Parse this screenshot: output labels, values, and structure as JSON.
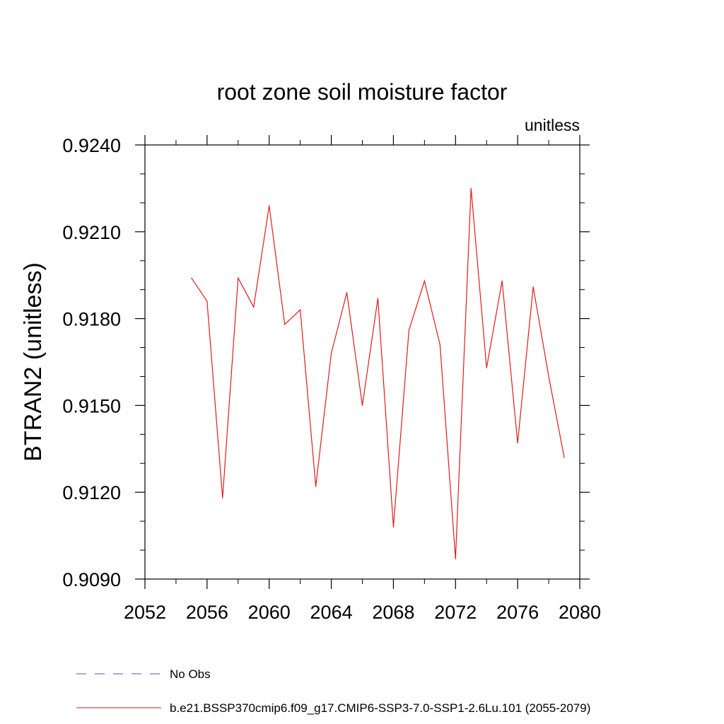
{
  "chart_data": {
    "type": "line",
    "title": "root zone soil moisture factor",
    "units_label": "unitless",
    "xlabel": "",
    "ylabel": "BTRAN2  (unitless)",
    "xlim": [
      2052,
      2080
    ],
    "ylim": [
      0.909,
      0.924
    ],
    "x_ticks": [
      2052,
      2056,
      2060,
      2064,
      2068,
      2072,
      2076,
      2080
    ],
    "x_tick_labels": [
      "2052",
      "2056",
      "2060",
      "2064",
      "2068",
      "2072",
      "2076",
      "2080"
    ],
    "x_minor_ticks": [
      2054,
      2058,
      2062,
      2066,
      2070,
      2074,
      2078
    ],
    "y_ticks": [
      0.909,
      0.912,
      0.915,
      0.918,
      0.921,
      0.924
    ],
    "y_tick_labels": [
      "0.9090",
      "0.9120",
      "0.9150",
      "0.9180",
      "0.9210",
      "0.9240"
    ],
    "y_minor_ticks": [
      0.91,
      0.911,
      0.913,
      0.914,
      0.916,
      0.917,
      0.919,
      0.92,
      0.922,
      0.923
    ],
    "grid": false,
    "legend_position": "bottom",
    "series": [
      {
        "name": "b.e21.BSSP370cmip6.f09_g17.CMIP6-SSP3-7.0-SSP1-2.6Lu.101 (2055-2079)",
        "color": "#e31a1c",
        "line_style": "solid",
        "x": [
          2055,
          2056,
          2057,
          2058,
          2059,
          2060,
          2061,
          2062,
          2063,
          2064,
          2065,
          2066,
          2067,
          2068,
          2069,
          2070,
          2071,
          2072,
          2073,
          2074,
          2075,
          2076,
          2077,
          2078,
          2079
        ],
        "y": [
          0.9194,
          0.9186,
          0.9118,
          0.9194,
          0.9184,
          0.9219,
          0.9178,
          0.9183,
          0.9122,
          0.9168,
          0.9189,
          0.915,
          0.9187,
          0.9108,
          0.9176,
          0.9193,
          0.9171,
          0.9097,
          0.9225,
          0.9163,
          0.9193,
          0.9137,
          0.9191,
          0.916,
          0.9132
        ]
      }
    ],
    "legend": [
      {
        "label": "No Obs",
        "color": "#5555bb",
        "line_style": "dashed"
      },
      {
        "label": "b.e21.BSSP370cmip6.f09_g17.CMIP6-SSP3-7.0-SSP1-2.6Lu.101 (2055-2079)",
        "color": "#e31a1c",
        "line_style": "solid"
      }
    ]
  }
}
